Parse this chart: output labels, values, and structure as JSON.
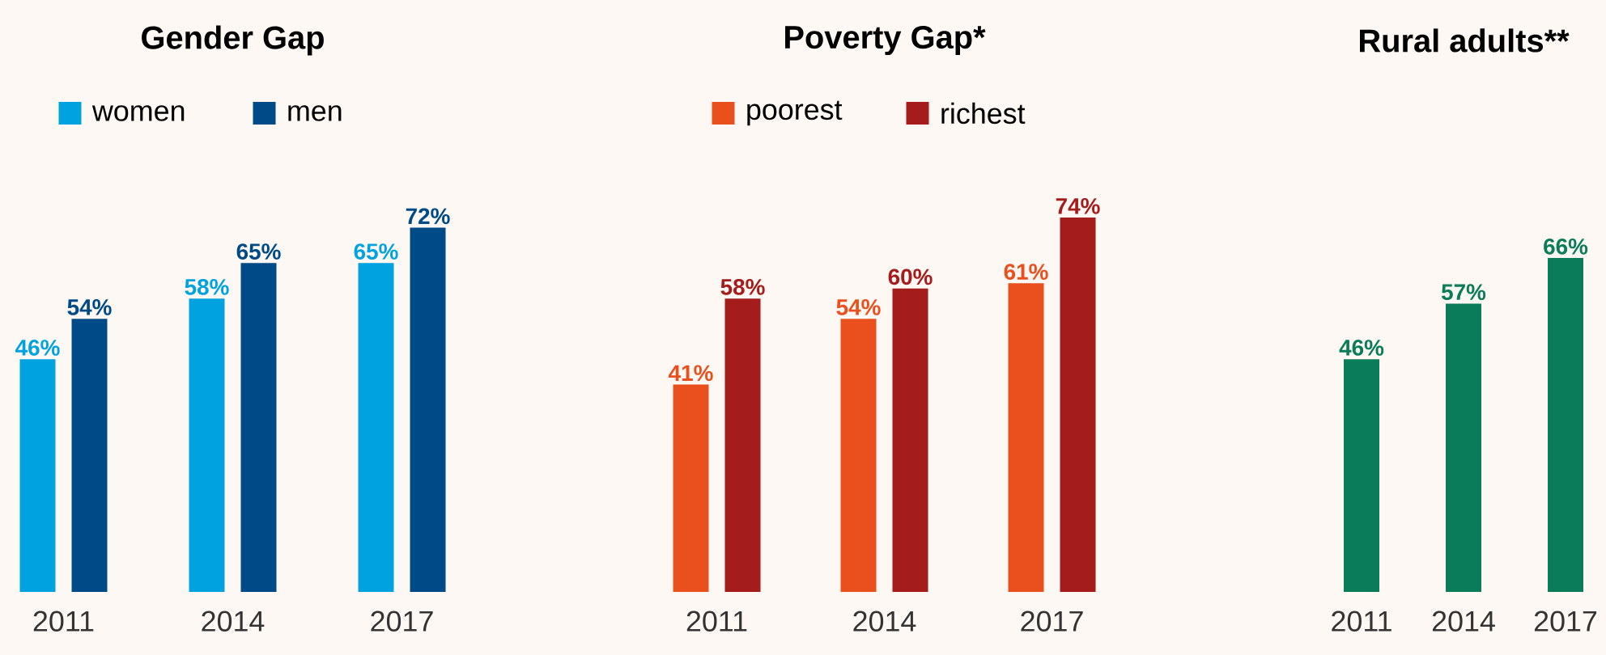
{
  "chart_data": [
    {
      "type": "bar",
      "title": "Gender Gap",
      "categories": [
        "2011",
        "2014",
        "2017"
      ],
      "legend": "top left",
      "tick_labels": "x",
      "series": [
        {
          "name": "women",
          "color": "#00a3e0",
          "values": [
            46,
            58,
            65
          ],
          "value_labels": [
            "46%",
            "58%",
            "65%"
          ]
        },
        {
          "name": "men",
          "color": "#004b87",
          "values": [
            54,
            65,
            72
          ],
          "value_labels": [
            "54%",
            "65%",
            "72%"
          ]
        }
      ]
    },
    {
      "type": "bar",
      "title": "Poverty Gap*",
      "categories": [
        "2011",
        "2014",
        "2017"
      ],
      "legend": "top left",
      "tick_labels": "x",
      "series": [
        {
          "name": "poorest",
          "color": "#e9501e",
          "values": [
            41,
            54,
            61
          ],
          "value_labels": [
            "41%",
            "54%",
            "61%"
          ]
        },
        {
          "name": "richest",
          "color": "#a51c1c",
          "values": [
            58,
            60,
            74
          ],
          "value_labels": [
            "58%",
            "60%",
            "74%"
          ]
        }
      ]
    },
    {
      "type": "bar",
      "title": "Rural adults**",
      "categories": [
        "2011",
        "2014",
        "2017"
      ],
      "tick_labels": "x",
      "series": [
        {
          "color": "#0a7c59",
          "values": [
            46,
            57,
            66
          ],
          "value_labels": [
            "46%",
            "57%",
            "66%"
          ]
        }
      ]
    }
  ]
}
